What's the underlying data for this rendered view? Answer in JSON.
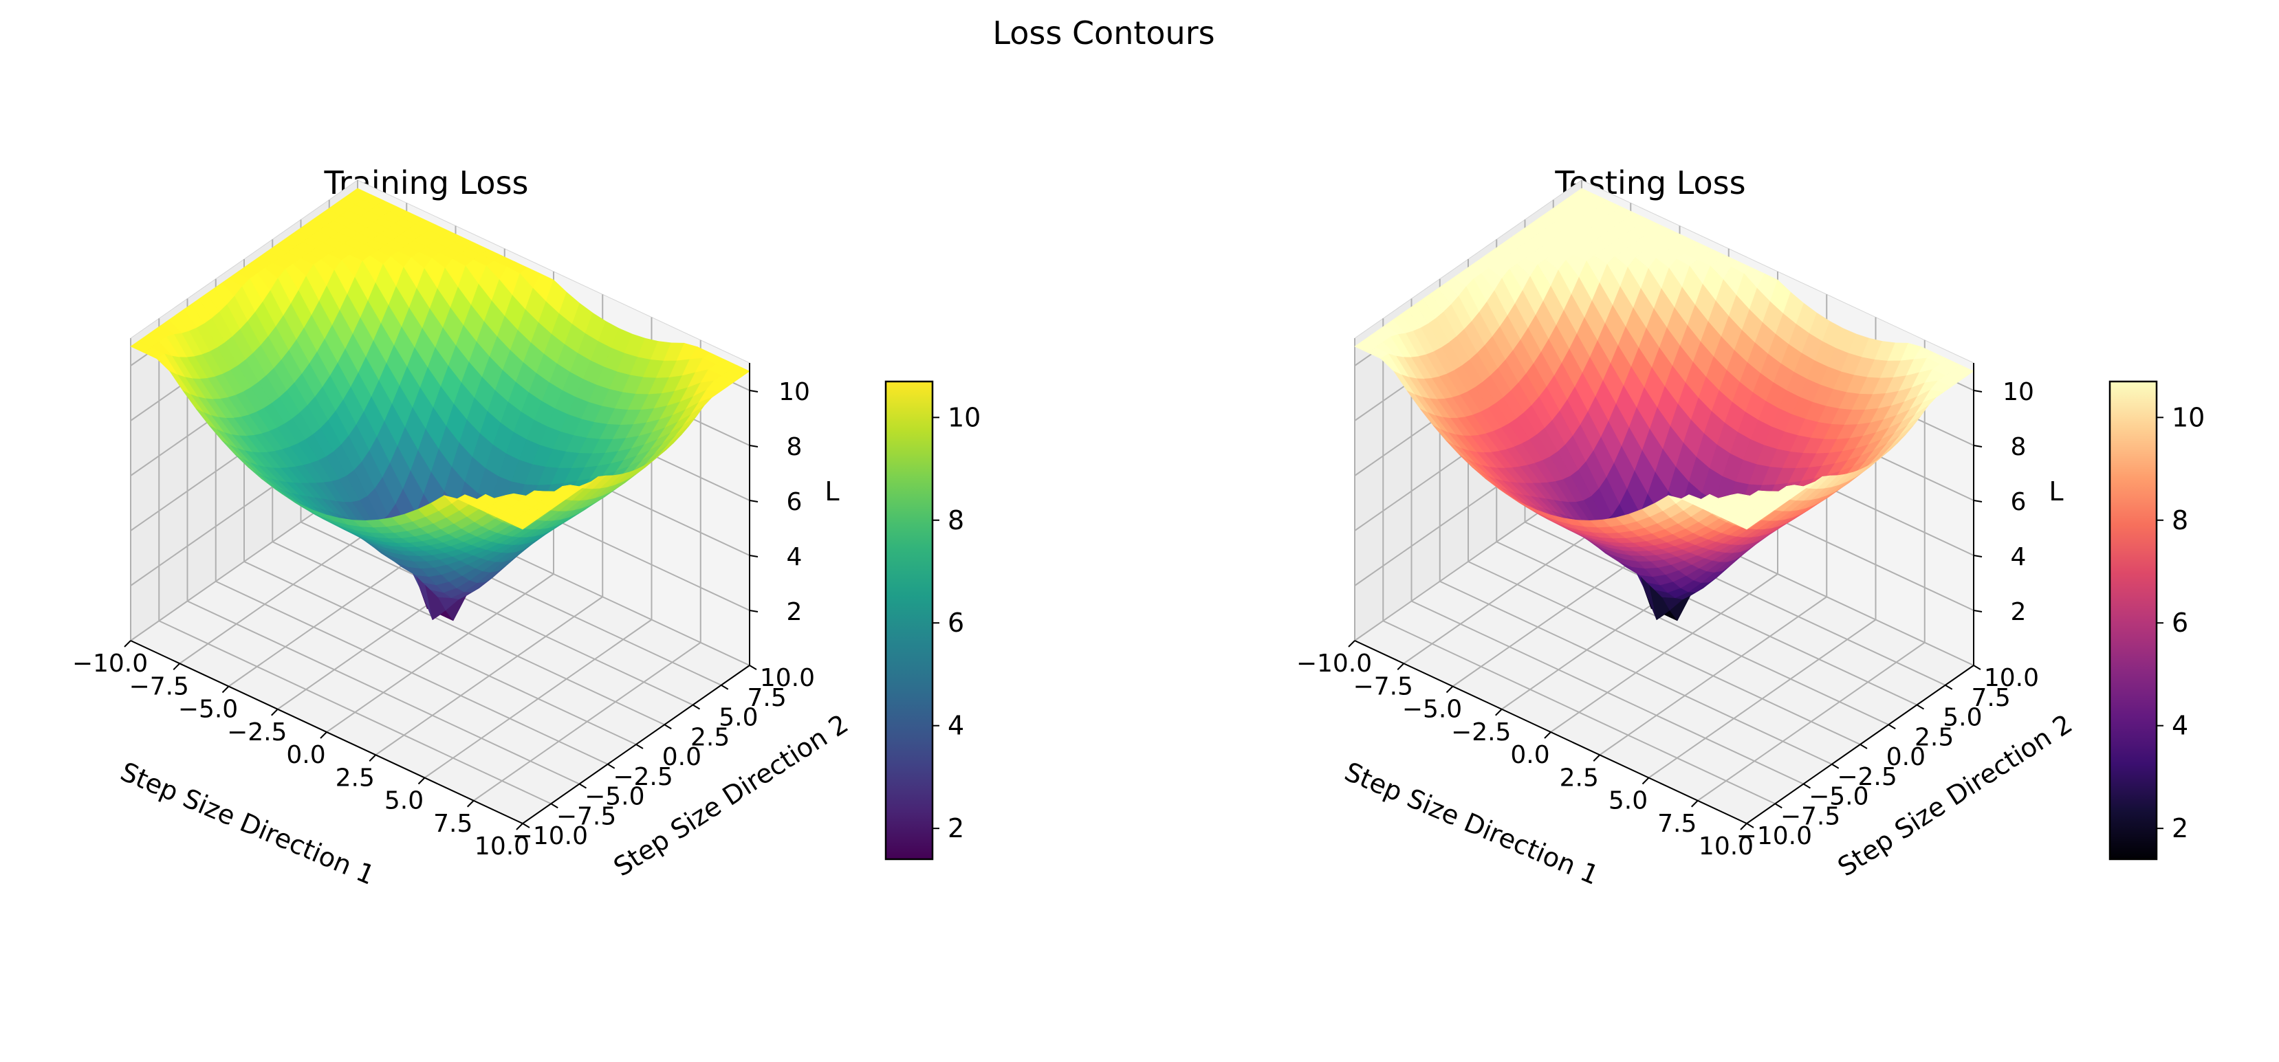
{
  "figure": {
    "title": "Loss Contours"
  },
  "chart_data": [
    {
      "type": "surface",
      "title": "Training Loss",
      "xlabel": "Step Size Direction 1",
      "ylabel": "Step Size Direction 2",
      "zlabel": "L",
      "xlim": [
        -10,
        10
      ],
      "ylim": [
        -10,
        10
      ],
      "zlim": [
        0,
        11
      ],
      "x_ticks": [
        "−10.0",
        "−7.5",
        "−5.0",
        "−2.5",
        "0.0",
        "2.5",
        "5.0",
        "7.5",
        "10.0"
      ],
      "y_ticks": [
        "−10.0",
        "−7.5",
        "−5.0",
        "−2.5",
        "0.0",
        "2.5",
        "5.0",
        "7.5",
        "10.0"
      ],
      "z_ticks": [
        "2",
        "4",
        "6",
        "8",
        "10"
      ],
      "colormap": "viridis",
      "colorbar": {
        "min": 1.4,
        "max": 10.7,
        "ticks": [
          "2",
          "4",
          "6",
          "8",
          "10"
        ]
      },
      "surface_min": 1.4,
      "surface_max": 10.7,
      "grid": true,
      "sample_points": [
        {
          "x": -10,
          "y": -10,
          "z": 7.9
        },
        {
          "x": -10,
          "y": 10,
          "z": 10.7
        },
        {
          "x": 10,
          "y": 10,
          "z": 9.6
        },
        {
          "x": 10,
          "y": -10,
          "z": 6.4
        },
        {
          "x": 0,
          "y": 0,
          "z": 1.4
        },
        {
          "x": 0,
          "y": 10,
          "z": 8.4
        },
        {
          "x": 0,
          "y": -10,
          "z": 5.6
        },
        {
          "x": -10,
          "y": 0,
          "z": 7.2
        },
        {
          "x": 10,
          "y": 0,
          "z": 6.3
        }
      ]
    },
    {
      "type": "surface",
      "title": "Testing Loss",
      "xlabel": "Step Size Direction 1",
      "ylabel": "Step Size Direction 2",
      "zlabel": "L",
      "xlim": [
        -10,
        10
      ],
      "ylim": [
        -10,
        10
      ],
      "zlim": [
        0,
        11
      ],
      "x_ticks": [
        "−10.0",
        "−7.5",
        "−5.0",
        "−2.5",
        "0.0",
        "2.5",
        "5.0",
        "7.5",
        "10.0"
      ],
      "y_ticks": [
        "−10.0",
        "−7.5",
        "−5.0",
        "−2.5",
        "0.0",
        "2.5",
        "5.0",
        "7.5",
        "10.0"
      ],
      "z_ticks": [
        "2",
        "4",
        "6",
        "8",
        "10"
      ],
      "colormap": "magma",
      "colorbar": {
        "min": 1.4,
        "max": 10.7,
        "ticks": [
          "2",
          "4",
          "6",
          "8",
          "10"
        ]
      },
      "surface_min": 1.4,
      "surface_max": 10.7,
      "grid": true,
      "sample_points": [
        {
          "x": -10,
          "y": -10,
          "z": 7.9
        },
        {
          "x": -10,
          "y": 10,
          "z": 10.7
        },
        {
          "x": 10,
          "y": 10,
          "z": 9.6
        },
        {
          "x": 10,
          "y": -10,
          "z": 6.4
        },
        {
          "x": 0,
          "y": 0,
          "z": 1.4
        },
        {
          "x": 0,
          "y": 10,
          "z": 8.4
        },
        {
          "x": 0,
          "y": -10,
          "z": 5.6
        },
        {
          "x": -10,
          "y": 0,
          "z": 7.2
        },
        {
          "x": 10,
          "y": 0,
          "z": 6.3
        }
      ]
    }
  ]
}
